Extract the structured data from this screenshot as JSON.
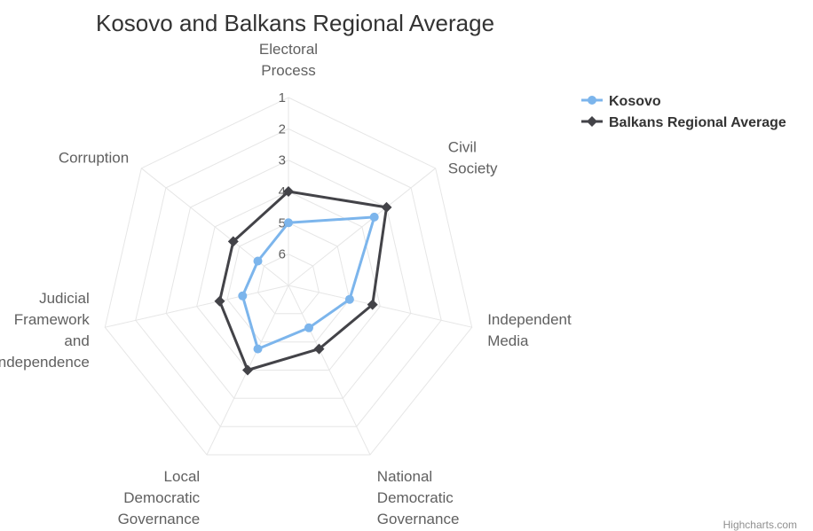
{
  "credits": "Highcharts.com",
  "chart_data": {
    "type": "line",
    "polar": true,
    "title": "Kosovo and Balkans Regional Average",
    "categories": [
      [
        "Electoral",
        "Process"
      ],
      [
        "Civil",
        "Society"
      ],
      [
        "Independent",
        "Media"
      ],
      [
        "National",
        "Democratic",
        "Governance"
      ],
      [
        "Local",
        "Democratic",
        "Governance"
      ],
      [
        "Judicial",
        "Framework",
        "and",
        "Independence"
      ],
      [
        "Corruption"
      ]
    ],
    "y_axis": {
      "reversed": true,
      "ticks": [
        1,
        2,
        3,
        4,
        5,
        6
      ],
      "range": [
        1,
        7
      ]
    },
    "series": [
      {
        "name": "Kosovo",
        "color": "#7cb5ec",
        "marker": "circle",
        "values": [
          5,
          3.5,
          5,
          5.5,
          4.75,
          5.5,
          5.75
        ]
      },
      {
        "name": "Balkans Regional Average",
        "color": "#434348",
        "marker": "diamond",
        "values": [
          4,
          3,
          4.25,
          4.75,
          4,
          4.75,
          4.75
        ]
      }
    ],
    "legend_position": "top-right",
    "grid": true
  }
}
